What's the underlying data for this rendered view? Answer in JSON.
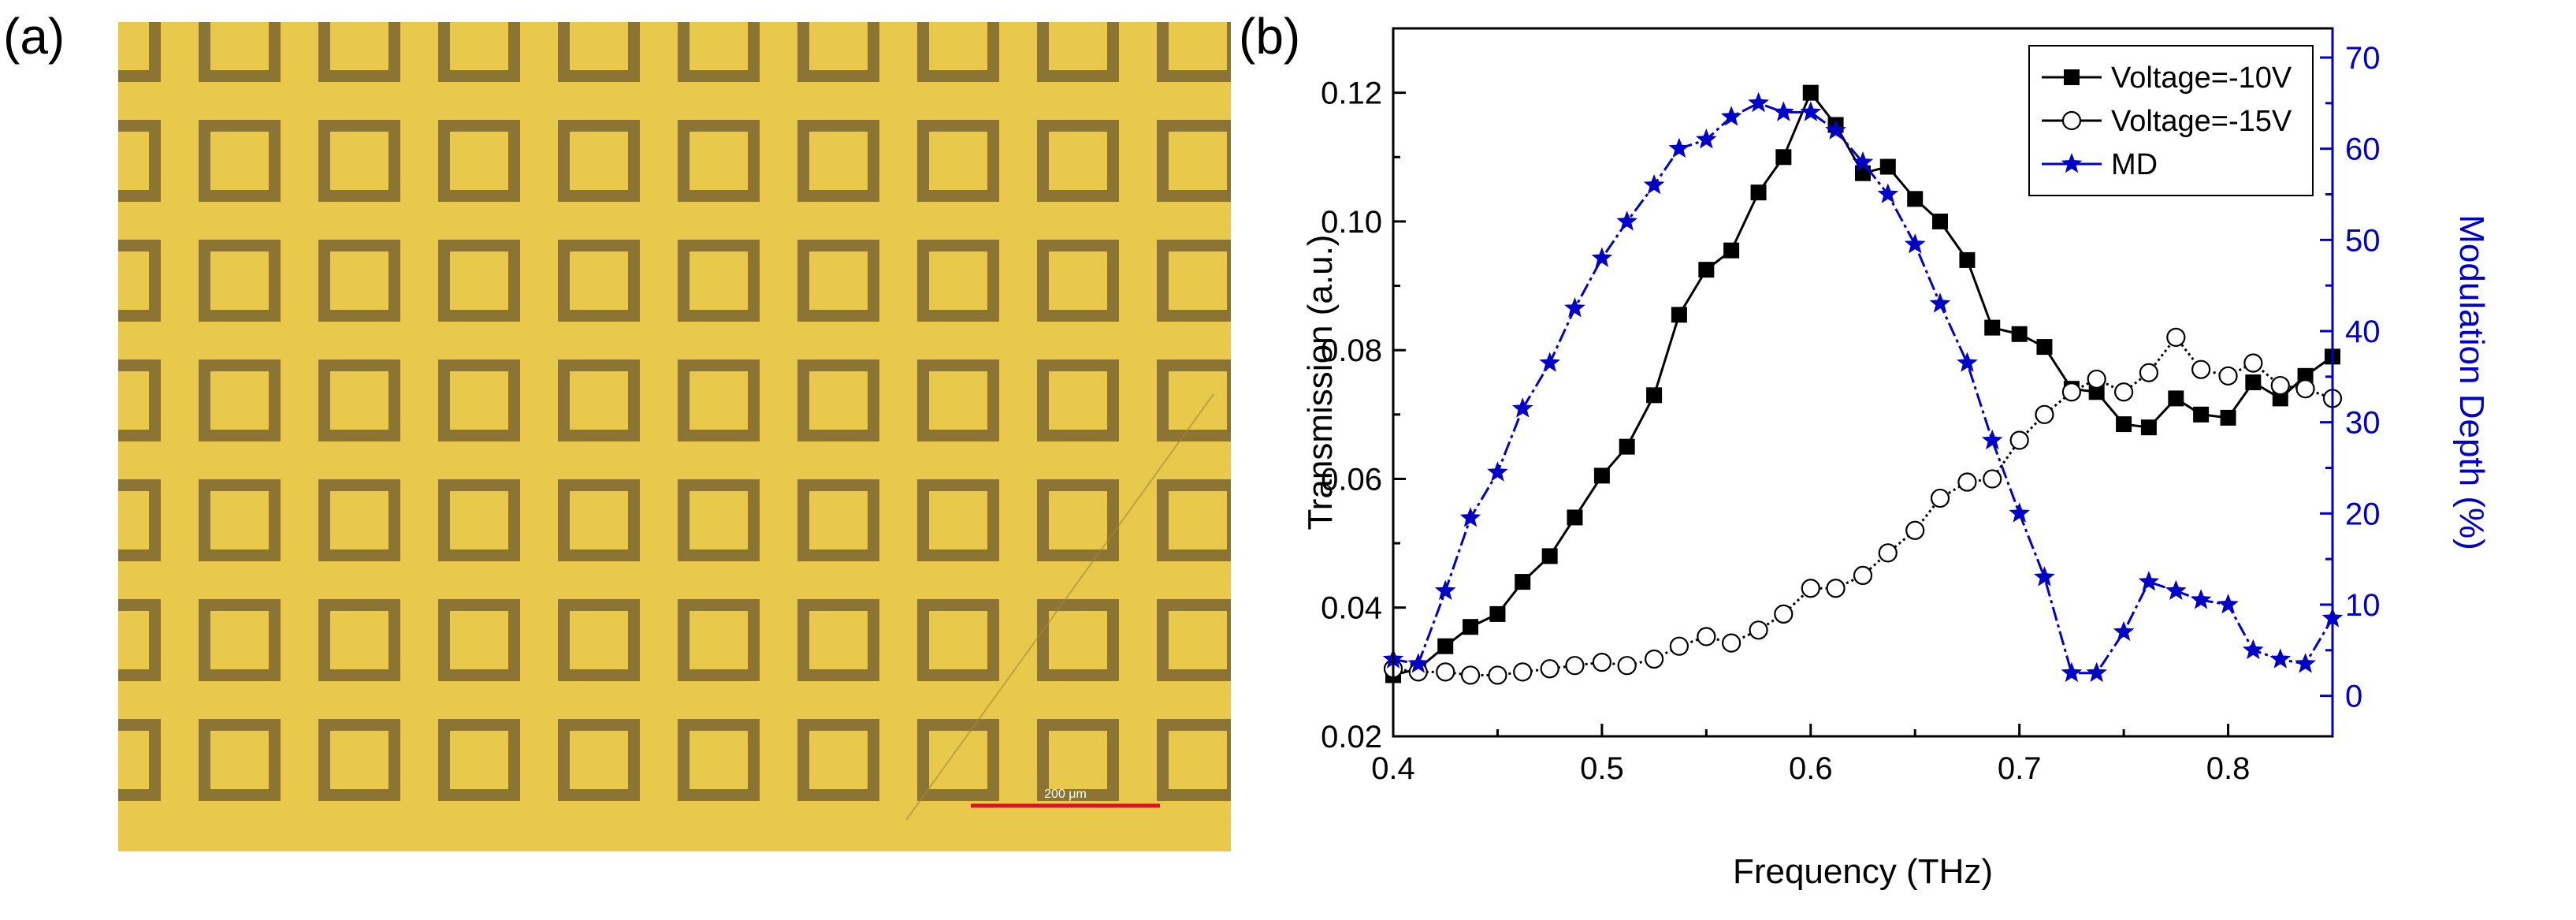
{
  "figure": {
    "panel_a_label": "(a)",
    "panel_b_label": "(b)",
    "scale_bar_text": "200 μm"
  },
  "colors": {
    "background_yellow": "#e9c94b",
    "square_brown": "#8b7434",
    "scale_bar_red": "#e0102a",
    "series_black": "#000000",
    "series_blue": "#0000c8"
  },
  "chart_data": {
    "type": "line",
    "title": "",
    "xlabel": "Frequency (THz)",
    "ylabel": "Transmission (a.u.)",
    "y2label": "Modulation Depth (%)",
    "xlim": [
      0.4,
      0.85
    ],
    "ylim": [
      0.02,
      0.13
    ],
    "y2lim": [
      -4.44,
      73.2
    ],
    "xticks": [
      0.4,
      0.5,
      0.6,
      0.7,
      0.8
    ],
    "xtick_labels": [
      "0.4",
      "0.5",
      "0.6",
      "0.7",
      "0.8"
    ],
    "yticks": [
      0.02,
      0.04,
      0.06,
      0.08,
      0.1,
      0.12
    ],
    "ytick_labels": [
      "0.02",
      "0.04",
      "0.06",
      "0.08",
      "0.10",
      "0.12"
    ],
    "y2ticks": [
      0,
      10,
      20,
      30,
      40,
      50,
      60,
      70
    ],
    "y2tick_labels": [
      "0",
      "10",
      "20",
      "30",
      "40",
      "50",
      "60",
      "70"
    ],
    "legend_position": "top-right",
    "series": [
      {
        "name": "Voltage=-10V",
        "axis": "left",
        "marker": "square-filled",
        "x": [
          0.4,
          0.412,
          0.425,
          0.437,
          0.45,
          0.462,
          0.475,
          0.487,
          0.5,
          0.512,
          0.525,
          0.537,
          0.55,
          0.562,
          0.575,
          0.587,
          0.6,
          0.612,
          0.625,
          0.637,
          0.65,
          0.662,
          0.675,
          0.687,
          0.7,
          0.712,
          0.725,
          0.737,
          0.75,
          0.762,
          0.775,
          0.787,
          0.8,
          0.812,
          0.825,
          0.837,
          0.85
        ],
        "values": [
          0.0295,
          0.0305,
          0.034,
          0.037,
          0.039,
          0.044,
          0.048,
          0.054,
          0.0605,
          0.065,
          0.073,
          0.0855,
          0.0925,
          0.0955,
          0.1045,
          0.11,
          0.12,
          0.115,
          0.1075,
          0.1085,
          0.1035,
          0.1,
          0.094,
          0.0835,
          0.0825,
          0.0805,
          0.074,
          0.0735,
          0.0685,
          0.068,
          0.0725,
          0.07,
          0.0695,
          0.075,
          0.0725,
          0.076,
          0.079
        ]
      },
      {
        "name": "Voltage=-15V",
        "axis": "left",
        "marker": "circle-open",
        "x": [
          0.4,
          0.412,
          0.425,
          0.437,
          0.45,
          0.462,
          0.475,
          0.487,
          0.5,
          0.512,
          0.525,
          0.537,
          0.55,
          0.562,
          0.575,
          0.587,
          0.6,
          0.612,
          0.625,
          0.637,
          0.65,
          0.662,
          0.675,
          0.687,
          0.7,
          0.712,
          0.725,
          0.737,
          0.75,
          0.762,
          0.775,
          0.787,
          0.8,
          0.812,
          0.825,
          0.837,
          0.85
        ],
        "values": [
          0.0305,
          0.03,
          0.03,
          0.0295,
          0.0295,
          0.03,
          0.0305,
          0.031,
          0.0315,
          0.031,
          0.032,
          0.034,
          0.0355,
          0.0345,
          0.0365,
          0.039,
          0.043,
          0.043,
          0.045,
          0.0485,
          0.052,
          0.057,
          0.0595,
          0.06,
          0.066,
          0.07,
          0.0735,
          0.0755,
          0.0735,
          0.0765,
          0.082,
          0.077,
          0.076,
          0.078,
          0.0745,
          0.074,
          0.0725
        ]
      },
      {
        "name": "MD",
        "axis": "right",
        "marker": "star-filled",
        "x": [
          0.4,
          0.412,
          0.425,
          0.437,
          0.45,
          0.462,
          0.475,
          0.487,
          0.5,
          0.512,
          0.525,
          0.537,
          0.55,
          0.562,
          0.575,
          0.587,
          0.6,
          0.612,
          0.625,
          0.637,
          0.65,
          0.662,
          0.675,
          0.687,
          0.7,
          0.712,
          0.725,
          0.737,
          0.75,
          0.762,
          0.775,
          0.787,
          0.8,
          0.812,
          0.825,
          0.837,
          0.85
        ],
        "values": [
          4,
          3.5,
          11.5,
          19.5,
          24.5,
          31.5,
          36.5,
          42.5,
          48,
          52,
          56,
          60,
          61,
          63.5,
          65,
          64,
          64,
          62,
          58.5,
          55,
          49.5,
          43,
          36.5,
          28,
          20,
          13,
          2.5,
          2.5,
          7,
          12.5,
          11.5,
          10.5,
          10,
          5,
          4,
          3.5,
          8.5
        ]
      }
    ]
  }
}
